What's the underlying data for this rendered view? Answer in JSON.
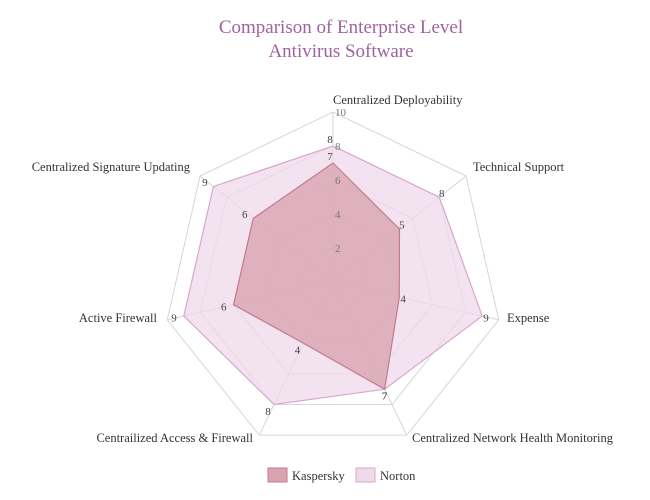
{
  "chart_data": {
    "type": "radar",
    "title": [
      "Comparison of Enterprise Level",
      "Antivirus Software"
    ],
    "axes": [
      "Centralized Deployability",
      "Technical Support",
      "Expense",
      "Centralized Network Health Monitoring",
      "Centrailized Access & Firewall",
      "Active Firewall",
      "Centralized Signature Updating"
    ],
    "rlim": [
      0,
      10
    ],
    "ticks": [
      2,
      4,
      6,
      8,
      10
    ],
    "series": [
      {
        "name": "Kaspersky",
        "values": [
          7,
          5,
          4,
          7,
          4,
          6,
          6
        ],
        "fill": "#d9a3b0",
        "stroke": "#c27b8d"
      },
      {
        "name": "Norton",
        "values": [
          8,
          8,
          9,
          7,
          8,
          9,
          9
        ],
        "fill": "#efdaeb",
        "stroke": "#d7a7cf"
      }
    ],
    "legend": "bottom",
    "grid": true
  }
}
